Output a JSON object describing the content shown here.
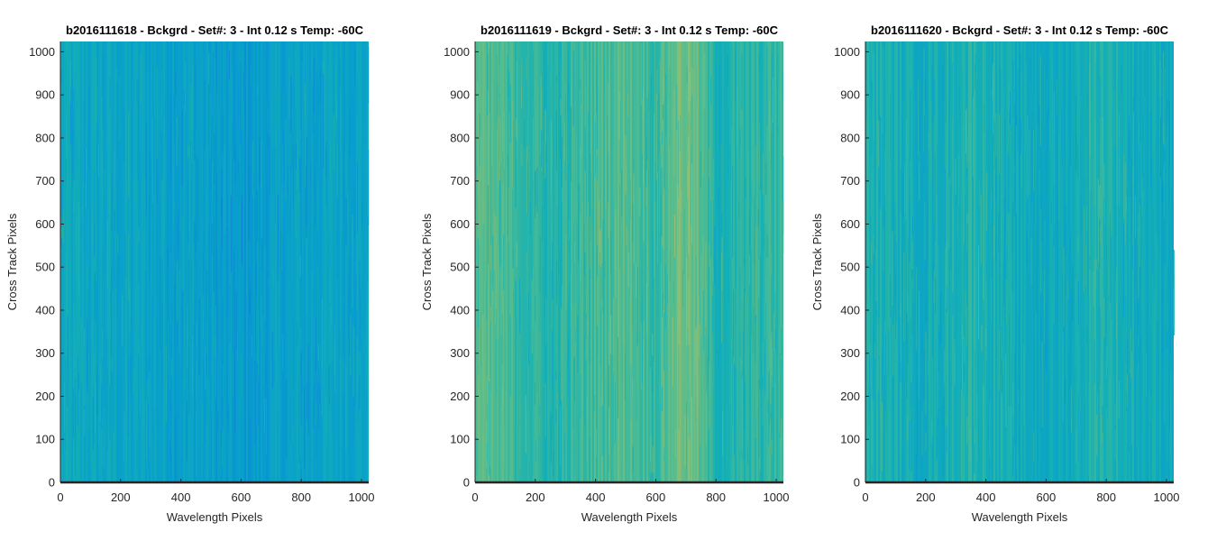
{
  "chart_data": [
    {
      "type": "heatmap",
      "title": "b2016111618 - Bckgrd - Set#: 3 - Int 0.12 s Temp: -60C",
      "xlabel": "Wavelength Pixels",
      "ylabel": "Cross Track Pixels",
      "xlim": [
        0,
        1024
      ],
      "ylim": [
        0,
        1024
      ],
      "xticks": [
        0,
        200,
        400,
        600,
        800,
        1000
      ],
      "yticks": [
        0,
        100,
        200,
        300,
        400,
        500,
        600,
        700,
        800,
        900,
        1000
      ],
      "colormap": "parula",
      "base_level": 0.36,
      "column_profile": [
        {
          "x": 0,
          "level": 0.4
        },
        {
          "x": 150,
          "level": 0.38
        },
        {
          "x": 300,
          "level": 0.37
        },
        {
          "x": 450,
          "level": 0.36
        },
        {
          "x": 600,
          "level": 0.33
        },
        {
          "x": 700,
          "level": 0.35
        },
        {
          "x": 850,
          "level": 0.37
        },
        {
          "x": 1024,
          "level": 0.38
        }
      ]
    },
    {
      "type": "heatmap",
      "title": "b2016111619 - Bckgrd - Set#: 3 - Int 0.12 s Temp: -60C",
      "xlabel": "Wavelength Pixels",
      "ylabel": "Cross Track Pixels",
      "xlim": [
        0,
        1024
      ],
      "ylim": [
        0,
        1024
      ],
      "xticks": [
        0,
        200,
        400,
        600,
        800,
        1000
      ],
      "yticks": [
        0,
        100,
        200,
        300,
        400,
        500,
        600,
        700,
        800,
        900,
        1000
      ],
      "colormap": "parula",
      "base_level": 0.5,
      "column_profile": [
        {
          "x": 0,
          "level": 0.55
        },
        {
          "x": 100,
          "level": 0.52
        },
        {
          "x": 250,
          "level": 0.46
        },
        {
          "x": 400,
          "level": 0.52
        },
        {
          "x": 500,
          "level": 0.55
        },
        {
          "x": 600,
          "level": 0.5
        },
        {
          "x": 680,
          "level": 0.6
        },
        {
          "x": 730,
          "level": 0.57
        },
        {
          "x": 800,
          "level": 0.45
        },
        {
          "x": 900,
          "level": 0.47
        },
        {
          "x": 1024,
          "level": 0.5
        }
      ]
    },
    {
      "type": "heatmap",
      "title": "b2016111620 - Bckgrd - Set#: 3 - Int 0.12 s Temp: -60C",
      "xlabel": "Wavelength Pixels",
      "ylabel": "Cross Track Pixels",
      "xlim": [
        0,
        1024
      ],
      "ylim": [
        0,
        1024
      ],
      "xticks": [
        0,
        200,
        400,
        600,
        800,
        1000
      ],
      "yticks": [
        0,
        100,
        200,
        300,
        400,
        500,
        600,
        700,
        800,
        900,
        1000
      ],
      "colormap": "parula",
      "base_level": 0.42,
      "column_profile": [
        {
          "x": 0,
          "level": 0.45
        },
        {
          "x": 200,
          "level": 0.42
        },
        {
          "x": 350,
          "level": 0.47
        },
        {
          "x": 500,
          "level": 0.41
        },
        {
          "x": 650,
          "level": 0.4
        },
        {
          "x": 780,
          "level": 0.47
        },
        {
          "x": 900,
          "level": 0.42
        },
        {
          "x": 1024,
          "level": 0.41
        }
      ]
    }
  ]
}
